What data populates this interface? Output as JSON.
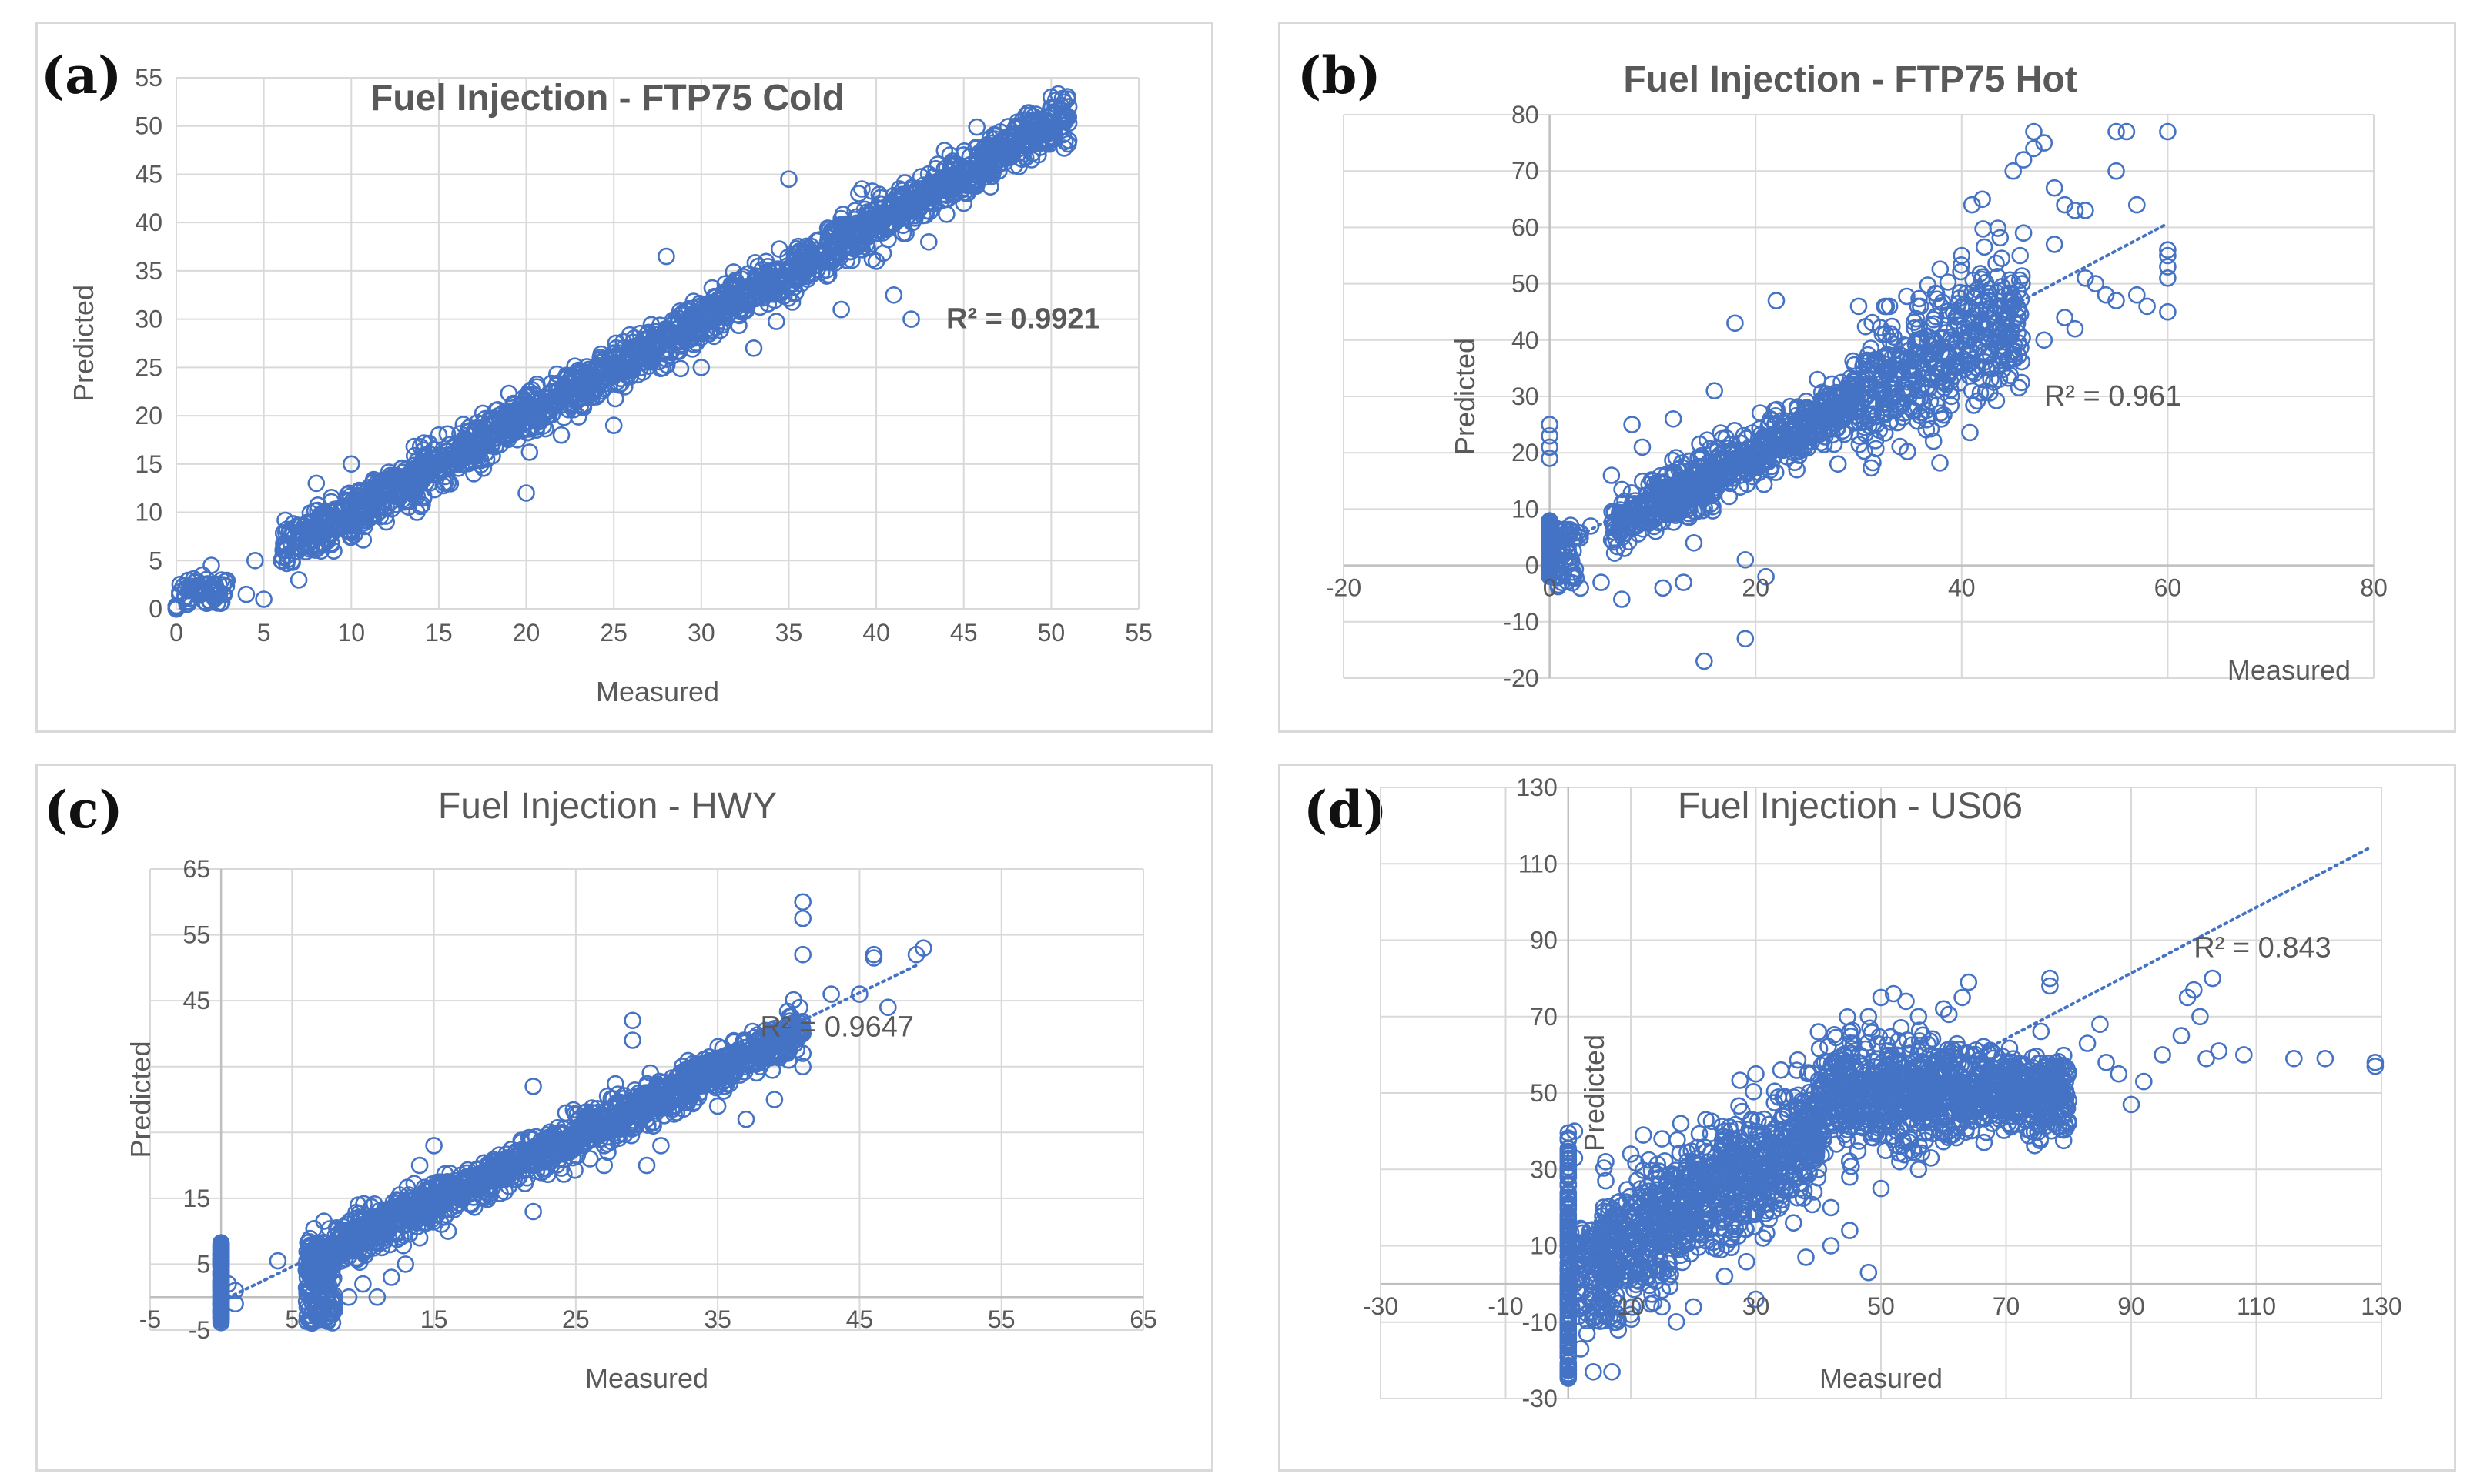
{
  "colors": {
    "marker": "#4472c4",
    "trend": "#4472c4",
    "grid": "#d9d9d9",
    "axis_text": "#595959",
    "title_text": "#595959"
  },
  "chart_data": [
    {
      "panel": "(a)",
      "type": "scatter",
      "title": "Fuel Injection - FTP75 Cold",
      "title_bold": true,
      "xlabel": "Measured",
      "ylabel": "Predicted",
      "xlim": [
        0,
        55
      ],
      "ylim": [
        0,
        55
      ],
      "xticks": [
        0,
        5,
        10,
        15,
        20,
        25,
        30,
        35,
        40,
        45,
        50,
        55
      ],
      "yticks": [
        0,
        5,
        10,
        15,
        20,
        25,
        30,
        35,
        40,
        45,
        50,
        55
      ],
      "grid": true,
      "annotation": "R² = 0.9921",
      "annotation_bold": true,
      "annotation_at": [
        44,
        30
      ],
      "trendline": false,
      "bands": [
        [
          6,
          51,
          1.0,
          0.0,
          1.2
        ]
      ],
      "clusters": [
        [
          0,
          0,
          5,
          0,
          0.3
        ],
        [
          0,
          3,
          6,
          0.4,
          3.2,
          1.0
        ]
      ],
      "outliers": [
        [
          5,
          1
        ],
        [
          4,
          1.5
        ],
        [
          4.5,
          5
        ],
        [
          2,
          4.5
        ],
        [
          1.5,
          3.5
        ],
        [
          8,
          13
        ],
        [
          8.5,
          10
        ],
        [
          12,
          9
        ],
        [
          20,
          12
        ],
        [
          28,
          36.5
        ],
        [
          35,
          44.5
        ],
        [
          42,
          30
        ],
        [
          41,
          32.5
        ],
        [
          33,
          27
        ],
        [
          40,
          36
        ],
        [
          45,
          42
        ],
        [
          50,
          53
        ],
        [
          51,
          48.5
        ],
        [
          48,
          50
        ],
        [
          47,
          48
        ],
        [
          46,
          46
        ],
        [
          17,
          14
        ],
        [
          25,
          19
        ],
        [
          22,
          18
        ],
        [
          30,
          25
        ],
        [
          38,
          31
        ],
        [
          43,
          38
        ],
        [
          39,
          43
        ],
        [
          45,
          47
        ],
        [
          49,
          51
        ],
        [
          51,
          52
        ],
        [
          50.5,
          49.8
        ],
        [
          51,
          50.3
        ],
        [
          49,
          50.5
        ],
        [
          6,
          5
        ],
        [
          7,
          3
        ],
        [
          9,
          6
        ],
        [
          10,
          15
        ],
        [
          15,
          18
        ],
        [
          28,
          28.2
        ]
      ],
      "n_band_points": 1900
    },
    {
      "panel": "(b)",
      "type": "scatter",
      "title": "Fuel Injection - FTP75 Hot",
      "title_bold": true,
      "xlabel": "Measured",
      "ylabel": "Predicted",
      "xlim": [
        -20,
        80
      ],
      "ylim": [
        -20,
        80
      ],
      "xticks": [
        -20,
        0,
        20,
        40,
        60,
        80
      ],
      "yticks": [
        -20,
        -10,
        0,
        10,
        20,
        30,
        40,
        50,
        60,
        70,
        80
      ],
      "grid": true,
      "annotation": "R² = 0.961",
      "annotation_bold": false,
      "annotation_at": [
        48,
        30
      ],
      "trendline": true,
      "trend": {
        "slope": 0.97,
        "intercept": 2.5,
        "x_from": 0,
        "x_to": 60
      },
      "bands": [
        [
          6,
          30,
          0.95,
          1.0,
          2.5
        ],
        [
          30,
          46,
          0.95,
          1.2,
          6.0
        ]
      ],
      "clusters": [
        [
          0,
          0,
          3.5,
          -2,
          8
        ],
        [
          0,
          3,
          8,
          -4,
          8,
          1.0
        ]
      ],
      "outliers": [
        [
          0,
          25
        ],
        [
          0,
          23
        ],
        [
          0,
          21
        ],
        [
          0,
          19
        ],
        [
          18,
          43
        ],
        [
          19,
          1
        ],
        [
          19,
          -13
        ],
        [
          21,
          -2
        ],
        [
          15,
          -17
        ],
        [
          13,
          -3
        ],
        [
          14,
          4
        ],
        [
          7,
          -6
        ],
        [
          8,
          25
        ],
        [
          9,
          21
        ],
        [
          12,
          26
        ],
        [
          16,
          31
        ],
        [
          22,
          47
        ],
        [
          26,
          33
        ],
        [
          30,
          46
        ],
        [
          33,
          46
        ],
        [
          36,
          46
        ],
        [
          40,
          55
        ],
        [
          41,
          64
        ],
        [
          42,
          65
        ],
        [
          45,
          70
        ],
        [
          46,
          72
        ],
        [
          47,
          74
        ],
        [
          47,
          77
        ],
        [
          48,
          75
        ],
        [
          49,
          67
        ],
        [
          50,
          64
        ],
        [
          51,
          63
        ],
        [
          52,
          63
        ],
        [
          49,
          57
        ],
        [
          46,
          59
        ],
        [
          55,
          77
        ],
        [
          56,
          77
        ],
        [
          55,
          70
        ],
        [
          57,
          64
        ],
        [
          60,
          77
        ],
        [
          60,
          56
        ],
        [
          60,
          55
        ],
        [
          60,
          53
        ],
        [
          60,
          51
        ],
        [
          60,
          45
        ],
        [
          57,
          48
        ],
        [
          58,
          46
        ],
        [
          55,
          47
        ],
        [
          52,
          51
        ],
        [
          51,
          42
        ],
        [
          48,
          40
        ],
        [
          50,
          44
        ],
        [
          44,
          37
        ],
        [
          42,
          33
        ],
        [
          41,
          31
        ],
        [
          37,
          33
        ],
        [
          40,
          40
        ],
        [
          45,
          38
        ],
        [
          54,
          48
        ],
        [
          53,
          50
        ],
        [
          35,
          28
        ],
        [
          32,
          24
        ],
        [
          28,
          18
        ],
        [
          24,
          17
        ],
        [
          10,
          15
        ],
        [
          11,
          -4
        ],
        [
          4,
          7
        ],
        [
          5,
          -3
        ],
        [
          2,
          6
        ],
        [
          3,
          -4
        ],
        [
          6,
          16
        ]
      ],
      "n_band_points": 1100
    },
    {
      "panel": "(c)",
      "type": "scatter",
      "title": "Fuel Injection - HWY",
      "title_bold": false,
      "xlabel": "Measured",
      "ylabel": "Predicted",
      "xlim": [
        -5,
        65
      ],
      "ylim": [
        -5,
        65
      ],
      "xticks": [
        -5,
        5,
        15,
        25,
        35,
        45,
        55,
        65
      ],
      "yticks": [
        -5,
        5,
        15,
        25,
        35,
        45,
        55,
        65
      ],
      "ytick_labels_shown": [
        "-5",
        "5",
        "15",
        "45",
        "55",
        "65"
      ],
      "grid": true,
      "annotation": "R² = 0.9647",
      "annotation_bold": false,
      "annotation_at": [
        38,
        41
      ],
      "trendline": true,
      "trend": {
        "slope": 1.04,
        "intercept": -0.6,
        "x_from": 0,
        "x_to": 49
      },
      "bands": [
        [
          6,
          41,
          1.0,
          -0.5,
          1.6
        ]
      ],
      "clusters": [
        [
          0,
          0,
          0.4,
          -4,
          8.5
        ],
        [
          6,
          8,
          6,
          -4,
          8
        ]
      ],
      "outliers": [
        [
          41,
          60
        ],
        [
          41,
          57.5
        ],
        [
          41,
          52
        ],
        [
          46,
          51.5
        ],
        [
          46,
          52
        ],
        [
          49,
          52
        ],
        [
          49.5,
          53
        ],
        [
          45,
          46
        ],
        [
          47,
          44
        ],
        [
          43,
          46
        ],
        [
          40,
          36
        ],
        [
          41,
          37
        ],
        [
          38,
          35
        ],
        [
          35,
          29
        ],
        [
          33,
          30
        ],
        [
          29,
          42
        ],
        [
          29,
          39
        ],
        [
          22,
          32
        ],
        [
          19,
          20.5
        ],
        [
          20,
          16
        ],
        [
          15,
          23
        ],
        [
          14,
          9
        ],
        [
          13,
          5
        ],
        [
          12,
          3
        ],
        [
          11,
          0
        ],
        [
          10,
          2
        ],
        [
          9,
          0
        ],
        [
          8,
          -2
        ],
        [
          7,
          1
        ],
        [
          14,
          20
        ],
        [
          16,
          10
        ],
        [
          22,
          13
        ],
        [
          27,
          20
        ],
        [
          30,
          20
        ],
        [
          24,
          25
        ],
        [
          26,
          21
        ],
        [
          31,
          23
        ],
        [
          39,
          30
        ],
        [
          37,
          27
        ],
        [
          40,
          38
        ],
        [
          1,
          1
        ],
        [
          1,
          -1
        ],
        [
          0.5,
          2
        ],
        [
          4,
          5.5
        ],
        [
          41,
          40
        ],
        [
          41,
          35
        ]
      ],
      "n_band_points": 1400
    },
    {
      "panel": "(d)",
      "type": "scatter",
      "title": "Fuel Injection - US06",
      "title_bold": false,
      "xlabel": "Measured",
      "ylabel": "Predicted",
      "xlim": [
        -30,
        130
      ],
      "ylim": [
        -30,
        130
      ],
      "xticks": [
        -30,
        -10,
        10,
        30,
        50,
        70,
        90,
        110,
        130
      ],
      "yticks": [
        -30,
        -10,
        10,
        30,
        50,
        70,
        90,
        110,
        130
      ],
      "grid": true,
      "annotation": "R² = 0.843",
      "annotation_bold": false,
      "annotation_at": [
        100,
        88
      ],
      "trendline": true,
      "trend": {
        "slope": 0.86,
        "intercept": 4,
        "x_from": 0,
        "x_to": 128
      },
      "bands": [
        [
          5,
          40,
          0.95,
          2.0,
          8.0
        ],
        [
          40,
          62,
          0.1,
          45.0,
          7.0
        ],
        [
          62,
          80,
          -0.1,
          57.0,
          5.0
        ]
      ],
      "clusters": [
        [
          0,
          0,
          0.5,
          -25,
          40
        ],
        [
          0,
          8,
          6,
          -10,
          15
        ]
      ],
      "outliers": [
        [
          88,
          55
        ],
        [
          90,
          47
        ],
        [
          92,
          53
        ],
        [
          95,
          60
        ],
        [
          98,
          65
        ],
        [
          99,
          75
        ],
        [
          100,
          77
        ],
        [
          101,
          70
        ],
        [
          103,
          80
        ],
        [
          102,
          59
        ],
        [
          104,
          61
        ],
        [
          108,
          60
        ],
        [
          116,
          59
        ],
        [
          121,
          59
        ],
        [
          129,
          58
        ],
        [
          129,
          57
        ],
        [
          85,
          68
        ],
        [
          83,
          63
        ],
        [
          86,
          58
        ],
        [
          77,
          80
        ],
        [
          77,
          78
        ],
        [
          64,
          79
        ],
        [
          63,
          75
        ],
        [
          60,
          72
        ],
        [
          56,
          70
        ],
        [
          57,
          55
        ],
        [
          59,
          56
        ],
        [
          61,
          52
        ],
        [
          58,
          33
        ],
        [
          56,
          30
        ],
        [
          53,
          32
        ],
        [
          48,
          3
        ],
        [
          42,
          10
        ],
        [
          38,
          7
        ],
        [
          36,
          16
        ],
        [
          42,
          20
        ],
        [
          45,
          14
        ],
        [
          30,
          -4
        ],
        [
          25,
          2
        ],
        [
          20,
          -6
        ],
        [
          15,
          -6
        ],
        [
          10,
          -8
        ],
        [
          8,
          -12
        ],
        [
          7,
          -23
        ],
        [
          4,
          -23
        ],
        [
          2,
          -17
        ],
        [
          3,
          -13
        ],
        [
          1,
          40
        ],
        [
          1,
          33
        ],
        [
          6,
          27
        ],
        [
          6,
          32
        ],
        [
          10,
          34
        ],
        [
          12,
          39
        ],
        [
          15,
          38
        ],
        [
          18,
          42
        ],
        [
          22,
          43
        ],
        [
          25,
          40
        ],
        [
          30,
          55
        ],
        [
          34,
          56
        ],
        [
          40,
          66
        ],
        [
          45,
          66
        ],
        [
          48,
          70
        ],
        [
          50,
          75
        ],
        [
          52,
          76
        ],
        [
          54,
          74
        ],
        [
          35,
          35
        ],
        [
          40,
          30
        ],
        [
          45,
          28
        ],
        [
          50,
          25
        ],
        [
          55,
          35
        ],
        [
          60,
          40
        ],
        [
          65,
          45
        ],
        [
          70,
          50
        ],
        [
          74,
          40
        ],
        [
          72,
          46
        ],
        [
          78,
          52
        ],
        [
          80,
          48
        ],
        [
          76,
          53
        ]
      ],
      "n_band_points": 1900
    }
  ]
}
